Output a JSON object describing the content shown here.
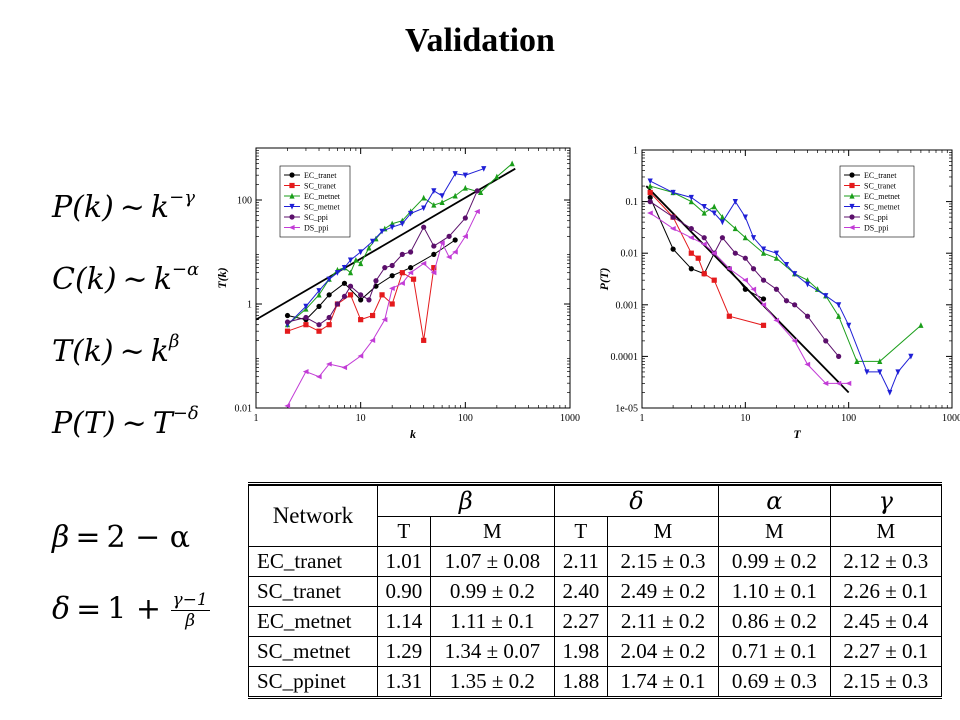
{
  "title": "Validation",
  "equations": {
    "pk": {
      "lhs": "P(k)",
      "rel": "~",
      "base": "k",
      "exp": "−γ"
    },
    "ck": {
      "lhs": "C(k)",
      "rel": "~",
      "base": "k",
      "exp": "−α"
    },
    "tk": {
      "lhs": "T(k)",
      "rel": "~",
      "base": "k",
      "exp": "β"
    },
    "pt": {
      "lhs": "P(T)",
      "rel": "~",
      "base": "T",
      "exp": "−δ"
    },
    "beta": {
      "lhs": "β",
      "rel": "=",
      "rhs": "2 − α"
    },
    "delta": {
      "lhs": "δ",
      "rel": "=",
      "rhs": "1 +",
      "num": "γ−1",
      "den": "β"
    }
  },
  "chart_data": [
    {
      "type": "scatter",
      "xlabel": "k",
      "ylabel": "T(k)",
      "xscale": "log",
      "yscale": "log",
      "xlim": [
        1,
        1000
      ],
      "ylim": [
        0.01,
        1000
      ],
      "xticks": [
        "1",
        "10",
        "100",
        "1000"
      ],
      "yticks": [
        "0.01",
        "1",
        "100"
      ],
      "legend_position": "top-left",
      "fit_line": {
        "x": [
          1,
          300
        ],
        "y": [
          0.5,
          400
        ],
        "color": "#000000"
      },
      "series": [
        {
          "name": "EC_tranet",
          "color": "#000000",
          "marker": "circle",
          "x": [
            2,
            3,
            4,
            5,
            7,
            10,
            14,
            20,
            30,
            50,
            80
          ],
          "y": [
            0.6,
            0.5,
            0.9,
            1.5,
            2.5,
            1.2,
            2.2,
            3.5,
            5,
            9,
            17
          ]
        },
        {
          "name": "SC_tranet",
          "color": "#e41a1c",
          "marker": "square",
          "x": [
            2,
            3,
            4,
            5,
            6,
            8,
            10,
            13,
            16,
            20,
            25,
            32,
            40,
            50
          ],
          "y": [
            0.3,
            0.4,
            0.3,
            0.4,
            1.0,
            1.5,
            0.5,
            0.6,
            1.5,
            1.0,
            4.0,
            3.0,
            0.2,
            5.0
          ]
        },
        {
          "name": "EC_metnet",
          "color": "#1a9e1a",
          "marker": "triangle-up",
          "x": [
            2,
            3,
            4,
            5,
            6,
            7,
            8,
            9,
            10,
            12,
            14,
            17,
            20,
            25,
            30,
            40,
            50,
            60,
            80,
            100,
            140,
            200,
            280
          ],
          "y": [
            0.4,
            0.8,
            1.5,
            3,
            4.5,
            5,
            4,
            7,
            6,
            12,
            18,
            28,
            35,
            40,
            60,
            110,
            80,
            90,
            120,
            170,
            140,
            280,
            500
          ]
        },
        {
          "name": "SC_metnet",
          "color": "#1f1fd6",
          "marker": "triangle-down",
          "x": [
            2,
            3,
            4,
            5,
            6,
            7,
            8,
            10,
            13,
            16,
            20,
            25,
            30,
            40,
            50,
            60,
            80,
            100,
            150
          ],
          "y": [
            0.4,
            0.9,
            1.8,
            3,
            4,
            5,
            7,
            10,
            16,
            25,
            30,
            35,
            55,
            70,
            150,
            120,
            320,
            300,
            400
          ]
        },
        {
          "name": "SC_ppi",
          "color": "#5b0f6b",
          "marker": "circle",
          "x": [
            2,
            3,
            4,
            5,
            6,
            7,
            8,
            10,
            12,
            14,
            17,
            20,
            25,
            30,
            40,
            50,
            70,
            100,
            130
          ],
          "y": [
            0.45,
            0.55,
            0.4,
            0.55,
            1.0,
            1.4,
            2.2,
            1.5,
            1.2,
            2.8,
            5,
            5.5,
            9,
            10,
            30,
            13,
            20,
            45,
            150
          ]
        },
        {
          "name": "DS_ppi",
          "color": "#c23cd6",
          "marker": "triangle-left",
          "x": [
            2,
            3,
            4,
            5,
            7,
            10,
            13,
            17,
            20,
            25,
            30,
            40,
            50,
            60,
            70,
            80,
            100,
            130
          ],
          "y": [
            0.011,
            0.05,
            0.04,
            0.07,
            0.06,
            0.1,
            0.2,
            0.5,
            2,
            2.5,
            4,
            6,
            4,
            15,
            8,
            10,
            20,
            60
          ]
        }
      ]
    },
    {
      "type": "scatter",
      "xlabel": "T",
      "ylabel": "P(T)",
      "xscale": "log",
      "yscale": "log",
      "xlim": [
        1,
        1000
      ],
      "ylim": [
        1e-05,
        1
      ],
      "xticks": [
        "1",
        "10",
        "100",
        "1000"
      ],
      "yticks": [
        "1e-05",
        "0.0001",
        "0.001",
        "0.01",
        "0.1",
        "1"
      ],
      "legend_position": "top-right",
      "fit_line": {
        "x": [
          1.1,
          100
        ],
        "y": [
          0.2,
          2e-05
        ],
        "color": "#000000"
      },
      "series": [
        {
          "name": "EC_tranet",
          "color": "#000000",
          "marker": "circle",
          "x": [
            1.2,
            2,
            3,
            4,
            5,
            7,
            10,
            15
          ],
          "y": [
            0.12,
            0.012,
            0.005,
            0.004,
            0.01,
            0.005,
            0.002,
            0.0013
          ]
        },
        {
          "name": "SC_tranet",
          "color": "#e41a1c",
          "marker": "square",
          "x": [
            1.2,
            2,
            3,
            3.5,
            4,
            5,
            7,
            15
          ],
          "y": [
            0.15,
            0.05,
            0.01,
            0.008,
            0.004,
            0.003,
            0.0006,
            0.0004
          ]
        },
        {
          "name": "EC_metnet",
          "color": "#1a9e1a",
          "marker": "triangle-up",
          "x": [
            1.2,
            2,
            3,
            4,
            5,
            6,
            8,
            10,
            15,
            20,
            30,
            40,
            50,
            60,
            80,
            120,
            200,
            500
          ],
          "y": [
            0.2,
            0.15,
            0.1,
            0.06,
            0.08,
            0.05,
            0.03,
            0.02,
            0.01,
            0.008,
            0.004,
            0.003,
            0.002,
            0.0015,
            0.0006,
            8e-05,
            8e-05,
            0.0004
          ]
        },
        {
          "name": "SC_metnet",
          "color": "#1f1fd6",
          "marker": "triangle-down",
          "x": [
            1.2,
            2,
            3,
            4,
            5,
            6,
            8,
            10,
            12,
            15,
            20,
            25,
            30,
            40,
            60,
            80,
            100,
            150,
            200,
            250,
            300,
            400
          ],
          "y": [
            0.25,
            0.15,
            0.12,
            0.08,
            0.06,
            0.04,
            0.1,
            0.05,
            0.02,
            0.012,
            0.01,
            0.006,
            0.004,
            0.0025,
            0.0015,
            0.001,
            0.0004,
            5e-05,
            5e-05,
            2e-05,
            5e-05,
            0.0001
          ]
        },
        {
          "name": "SC_ppi",
          "color": "#5b0f6b",
          "marker": "circle",
          "x": [
            1.2,
            2,
            3,
            4,
            5,
            6,
            8,
            10,
            12,
            15,
            20,
            25,
            30,
            40,
            60,
            80
          ],
          "y": [
            0.1,
            0.05,
            0.03,
            0.02,
            0.01,
            0.02,
            0.01,
            0.008,
            0.005,
            0.003,
            0.002,
            0.0012,
            0.001,
            0.0006,
            0.0002,
            0.0001
          ]
        },
        {
          "name": "DS_ppi",
          "color": "#c23cd6",
          "marker": "triangle-left",
          "x": [
            1.2,
            2,
            3,
            4,
            5,
            7,
            10,
            12,
            15,
            20,
            30,
            40,
            60,
            80,
            100
          ],
          "y": [
            0.06,
            0.03,
            0.02,
            0.015,
            0.01,
            0.005,
            0.003,
            0.002,
            0.001,
            0.0005,
            0.0002,
            7e-05,
            3e-05,
            3e-05,
            3e-05
          ]
        }
      ]
    },
    {
      "type": "table",
      "header_top": [
        "Network",
        "β",
        "δ",
        "α",
        "γ"
      ],
      "header_sub": [
        "T",
        "M",
        "T",
        "M",
        "M",
        "M"
      ],
      "rows": [
        [
          "EC_tranet",
          "1.01",
          "1.07 ± 0.08",
          "2.11",
          "2.15 ± 0.3",
          "0.99 ± 0.2",
          "2.12 ± 0.3"
        ],
        [
          "SC_tranet",
          "0.90",
          "0.99 ± 0.2",
          "2.40",
          "2.49 ± 0.2",
          "1.10 ± 0.1",
          "2.26 ± 0.1"
        ],
        [
          "EC_metnet",
          "1.14",
          "1.11 ± 0.1",
          "2.27",
          "2.11 ± 0.2",
          "0.86 ± 0.2",
          "2.45 ± 0.4"
        ],
        [
          "SC_metnet",
          "1.29",
          "1.34 ± 0.07",
          "1.98",
          "2.04 ± 0.2",
          "0.71 ± 0.1",
          "2.27 ± 0.1"
        ],
        [
          "SC_ppinet",
          "1.31",
          "1.35 ± 0.2",
          "1.88",
          "1.74 ± 0.1",
          "0.69 ± 0.3",
          "2.15 ± 0.3"
        ]
      ]
    }
  ]
}
